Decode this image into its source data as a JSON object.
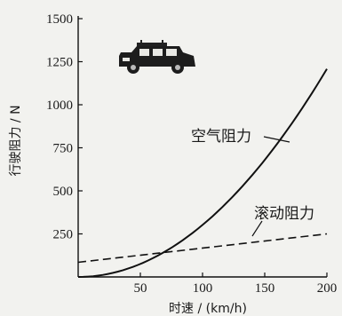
{
  "chart_data": {
    "type": "line",
    "xlabel": "时速 / (km/h)",
    "ylabel": "行驶阻力 / N",
    "xlim": [
      0,
      200
    ],
    "ylim": [
      0,
      1500
    ],
    "x_ticks": [
      "50",
      "100",
      "150",
      "200"
    ],
    "y_ticks": [
      "250",
      "500",
      "750",
      "1000",
      "1250",
      "1500"
    ],
    "grid": false,
    "legend": "none",
    "illustration": "jeep-icon",
    "series": [
      {
        "name": "空气阻力",
        "style": "solid",
        "x": [
          0,
          20,
          40,
          60,
          80,
          100,
          120,
          140,
          160,
          180,
          200
        ],
        "y": [
          0,
          12,
          48,
          108,
          193,
          302,
          434,
          591,
          772,
          978,
          1207
        ]
      },
      {
        "name": "滚动阻力",
        "style": "dashed",
        "x": [
          0,
          200
        ],
        "y": [
          85,
          250
        ]
      }
    ]
  }
}
